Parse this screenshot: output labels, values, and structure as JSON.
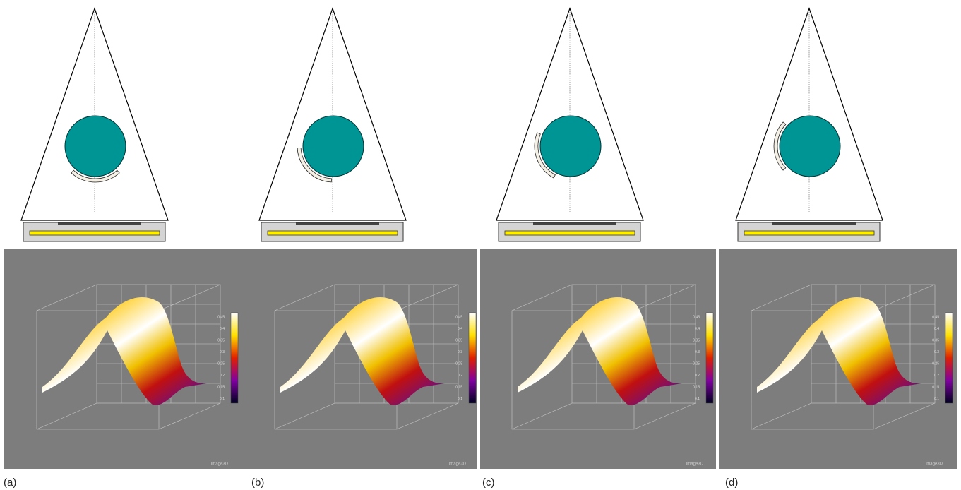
{
  "panels": [
    {
      "label": "(a)"
    },
    {
      "label": "(b)"
    },
    {
      "label": "(c)"
    },
    {
      "label": "(d)"
    }
  ],
  "colorbar_ticks": [
    "0.45",
    "0.4",
    "0.35",
    "0.3",
    "0.25",
    "0.2",
    "0.15",
    "0.1"
  ],
  "watermark": "Image3D"
}
